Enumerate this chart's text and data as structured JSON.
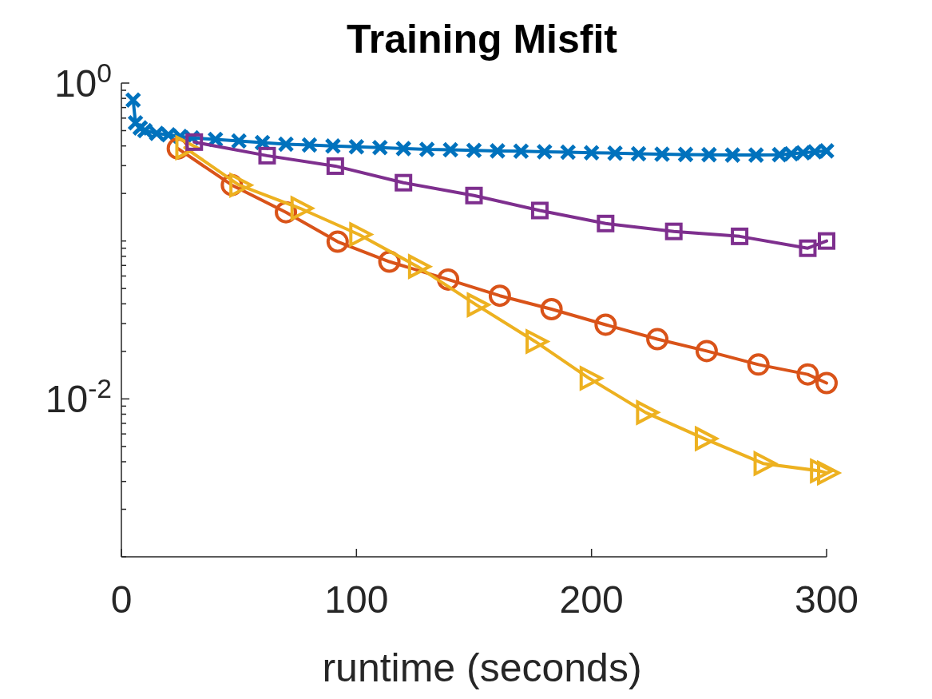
{
  "chart_data": {
    "type": "line",
    "title": "Training Misfit",
    "xlabel": "runtime (seconds)",
    "xlim": [
      0,
      300
    ],
    "xticks": [
      0,
      100,
      200,
      300
    ],
    "ylim": [
      0.001,
      1
    ],
    "log": true,
    "grid": false,
    "line_style": "solid",
    "yticks": [
      {
        "value": 1,
        "label": "10$^{0}$"
      },
      {
        "value": 0.9,
        "label": null
      },
      {
        "value": 0.8,
        "label": null
      },
      {
        "value": 0.7,
        "label": null
      },
      {
        "value": 0.6,
        "label": null
      },
      {
        "value": 0.5,
        "label": null
      },
      {
        "value": 0.4,
        "label": null
      },
      {
        "value": 0.3,
        "label": null
      },
      {
        "value": 0.2,
        "label": null
      },
      {
        "value": 0.1,
        "label": null
      },
      {
        "value": 0.09,
        "label": null
      },
      {
        "value": 0.08,
        "label": null
      },
      {
        "value": 0.07,
        "label": null
      },
      {
        "value": 0.06,
        "label": null
      },
      {
        "value": 0.05,
        "label": null
      },
      {
        "value": 0.04,
        "label": null
      },
      {
        "value": 0.03,
        "label": null
      },
      {
        "value": 0.02,
        "label": null
      },
      {
        "value": 0.01,
        "label": "10$^{-2}$"
      },
      {
        "value": 0.009,
        "label": null
      },
      {
        "value": 0.008,
        "label": null
      },
      {
        "value": 0.007,
        "label": null
      },
      {
        "value": 0.006,
        "label": null
      },
      {
        "value": 0.005,
        "label": null
      },
      {
        "value": 0.004,
        "label": null
      },
      {
        "value": 0.003,
        "label": null
      },
      {
        "value": 0.002,
        "label": null
      },
      {
        "value": 0.001,
        "label": null
      }
    ],
    "series": [
      {
        "color": "#0072bd",
        "marker": "cross",
        "x": [
          5,
          6,
          8,
          10,
          15,
          20,
          25,
          30,
          40,
          50,
          60,
          70,
          80,
          90,
          100,
          110,
          120,
          130,
          140,
          150,
          160,
          170,
          180,
          190,
          200,
          210,
          220,
          230,
          240,
          250,
          260,
          270,
          280,
          285,
          290,
          295,
          300
        ],
        "values": [
          0.78,
          0.56,
          0.52,
          0.5,
          0.48,
          0.47,
          0.46,
          0.45,
          0.44,
          0.43,
          0.42,
          0.41,
          0.405,
          0.4,
          0.395,
          0.39,
          0.385,
          0.38,
          0.378,
          0.375,
          0.372,
          0.37,
          0.367,
          0.365,
          0.362,
          0.36,
          0.357,
          0.355,
          0.353,
          0.352,
          0.35,
          0.35,
          0.352,
          0.357,
          0.362,
          0.367,
          0.372
        ]
      },
      {
        "color": "#d95319",
        "marker": "circle",
        "x": [
          24,
          47,
          70,
          92,
          114,
          139,
          161,
          183,
          206,
          228,
          249,
          271,
          292,
          300
        ],
        "values": [
          0.385,
          0.226,
          0.152,
          0.099,
          0.074,
          0.057,
          0.045,
          0.037,
          0.0295,
          0.0239,
          0.0201,
          0.0165,
          0.0143,
          0.0126
        ]
      },
      {
        "color": "#edb120",
        "marker": "triangle",
        "x": [
          27,
          50,
          76,
          101,
          126,
          151,
          176,
          199,
          223,
          248,
          273,
          297,
          300
        ],
        "values": [
          0.39,
          0.226,
          0.161,
          0.11,
          0.0689,
          0.0394,
          0.0231,
          0.0135,
          0.0082,
          0.0056,
          0.0039,
          0.0035,
          0.0034
        ]
      },
      {
        "color": "#7e2f8e",
        "marker": "square",
        "x": [
          31,
          62,
          91,
          120,
          150,
          178,
          206,
          235,
          263,
          292,
          300
        ],
        "values": [
          0.423,
          0.347,
          0.298,
          0.234,
          0.194,
          0.156,
          0.129,
          0.115,
          0.107,
          0.09,
          0.1
        ]
      }
    ]
  }
}
